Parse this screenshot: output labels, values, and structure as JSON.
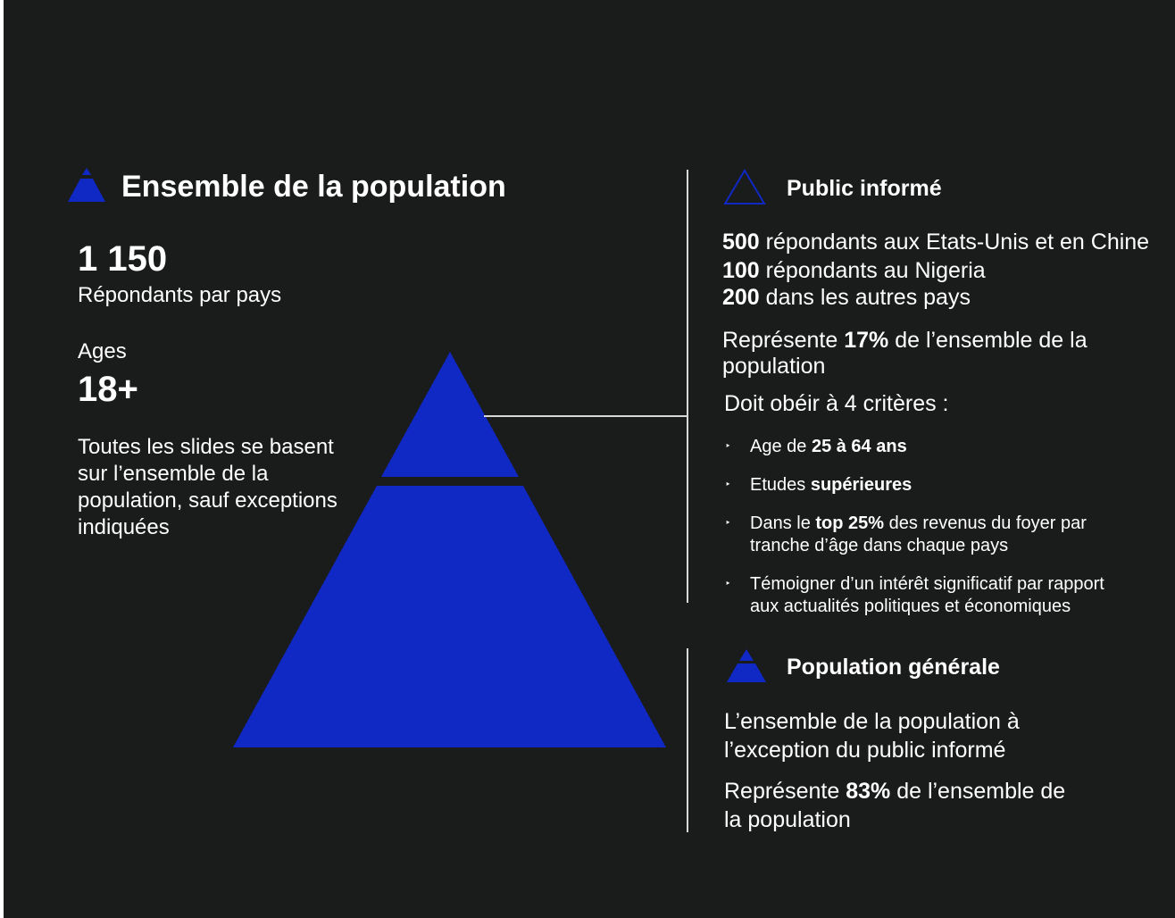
{
  "colors": {
    "background": "#1a1b1b",
    "accent": "#1028c4",
    "text": "#ffffff",
    "divider": "#d8d8d8"
  },
  "left": {
    "title": "Ensemble de la population",
    "count_value": "1 150",
    "count_label": "Répondants par pays",
    "ages_label": "Ages",
    "ages_value": "18+",
    "note": "Toutes les slides se basent sur l’ensemble de la population, sauf exceptions indiquées"
  },
  "informed": {
    "title": "Public informé",
    "lines": [
      {
        "bold": "500",
        "text": " répondants aux Etats-Unis et en Chine"
      },
      {
        "bold": "100",
        "text": " répondants au Nigeria"
      },
      {
        "bold": "200",
        "text": " dans les autres pays"
      }
    ],
    "share_prefix": "Représente ",
    "share_bold": "17%",
    "share_suffix": " de l’ensemble de la",
    "share_suffix2": "population",
    "criteria_title": "Doit obéir à 4 critères :",
    "criteria": [
      {
        "pre": "Age de ",
        "bold": "25 à 64 ans",
        "post": "",
        "post2": ""
      },
      {
        "pre": "Etudes ",
        "bold": "supérieures",
        "post": "",
        "post2": ""
      },
      {
        "pre": "Dans le ",
        "bold": "top 25%",
        "post": " des revenus du foyer par",
        "post2": "tranche d’âge dans chaque pays"
      },
      {
        "pre": "Témoigner d’un intérêt significatif par rapport",
        "bold": "",
        "post": "",
        "post2": "aux actualités politiques et économiques"
      }
    ]
  },
  "general": {
    "title": "Population générale",
    "desc1": "L’ensemble de la population à",
    "desc2": "l’exception du public informé",
    "share_prefix": "Représente ",
    "share_bold": "83%",
    "share_suffix": " de l’ensemble de",
    "share_suffix2": "la population"
  },
  "icons": {
    "title_icon": "pyramid-filled-icon",
    "informed_icon": "triangle-outline-icon",
    "general_icon": "pyramid-split-icon",
    "bullet": "‣"
  }
}
